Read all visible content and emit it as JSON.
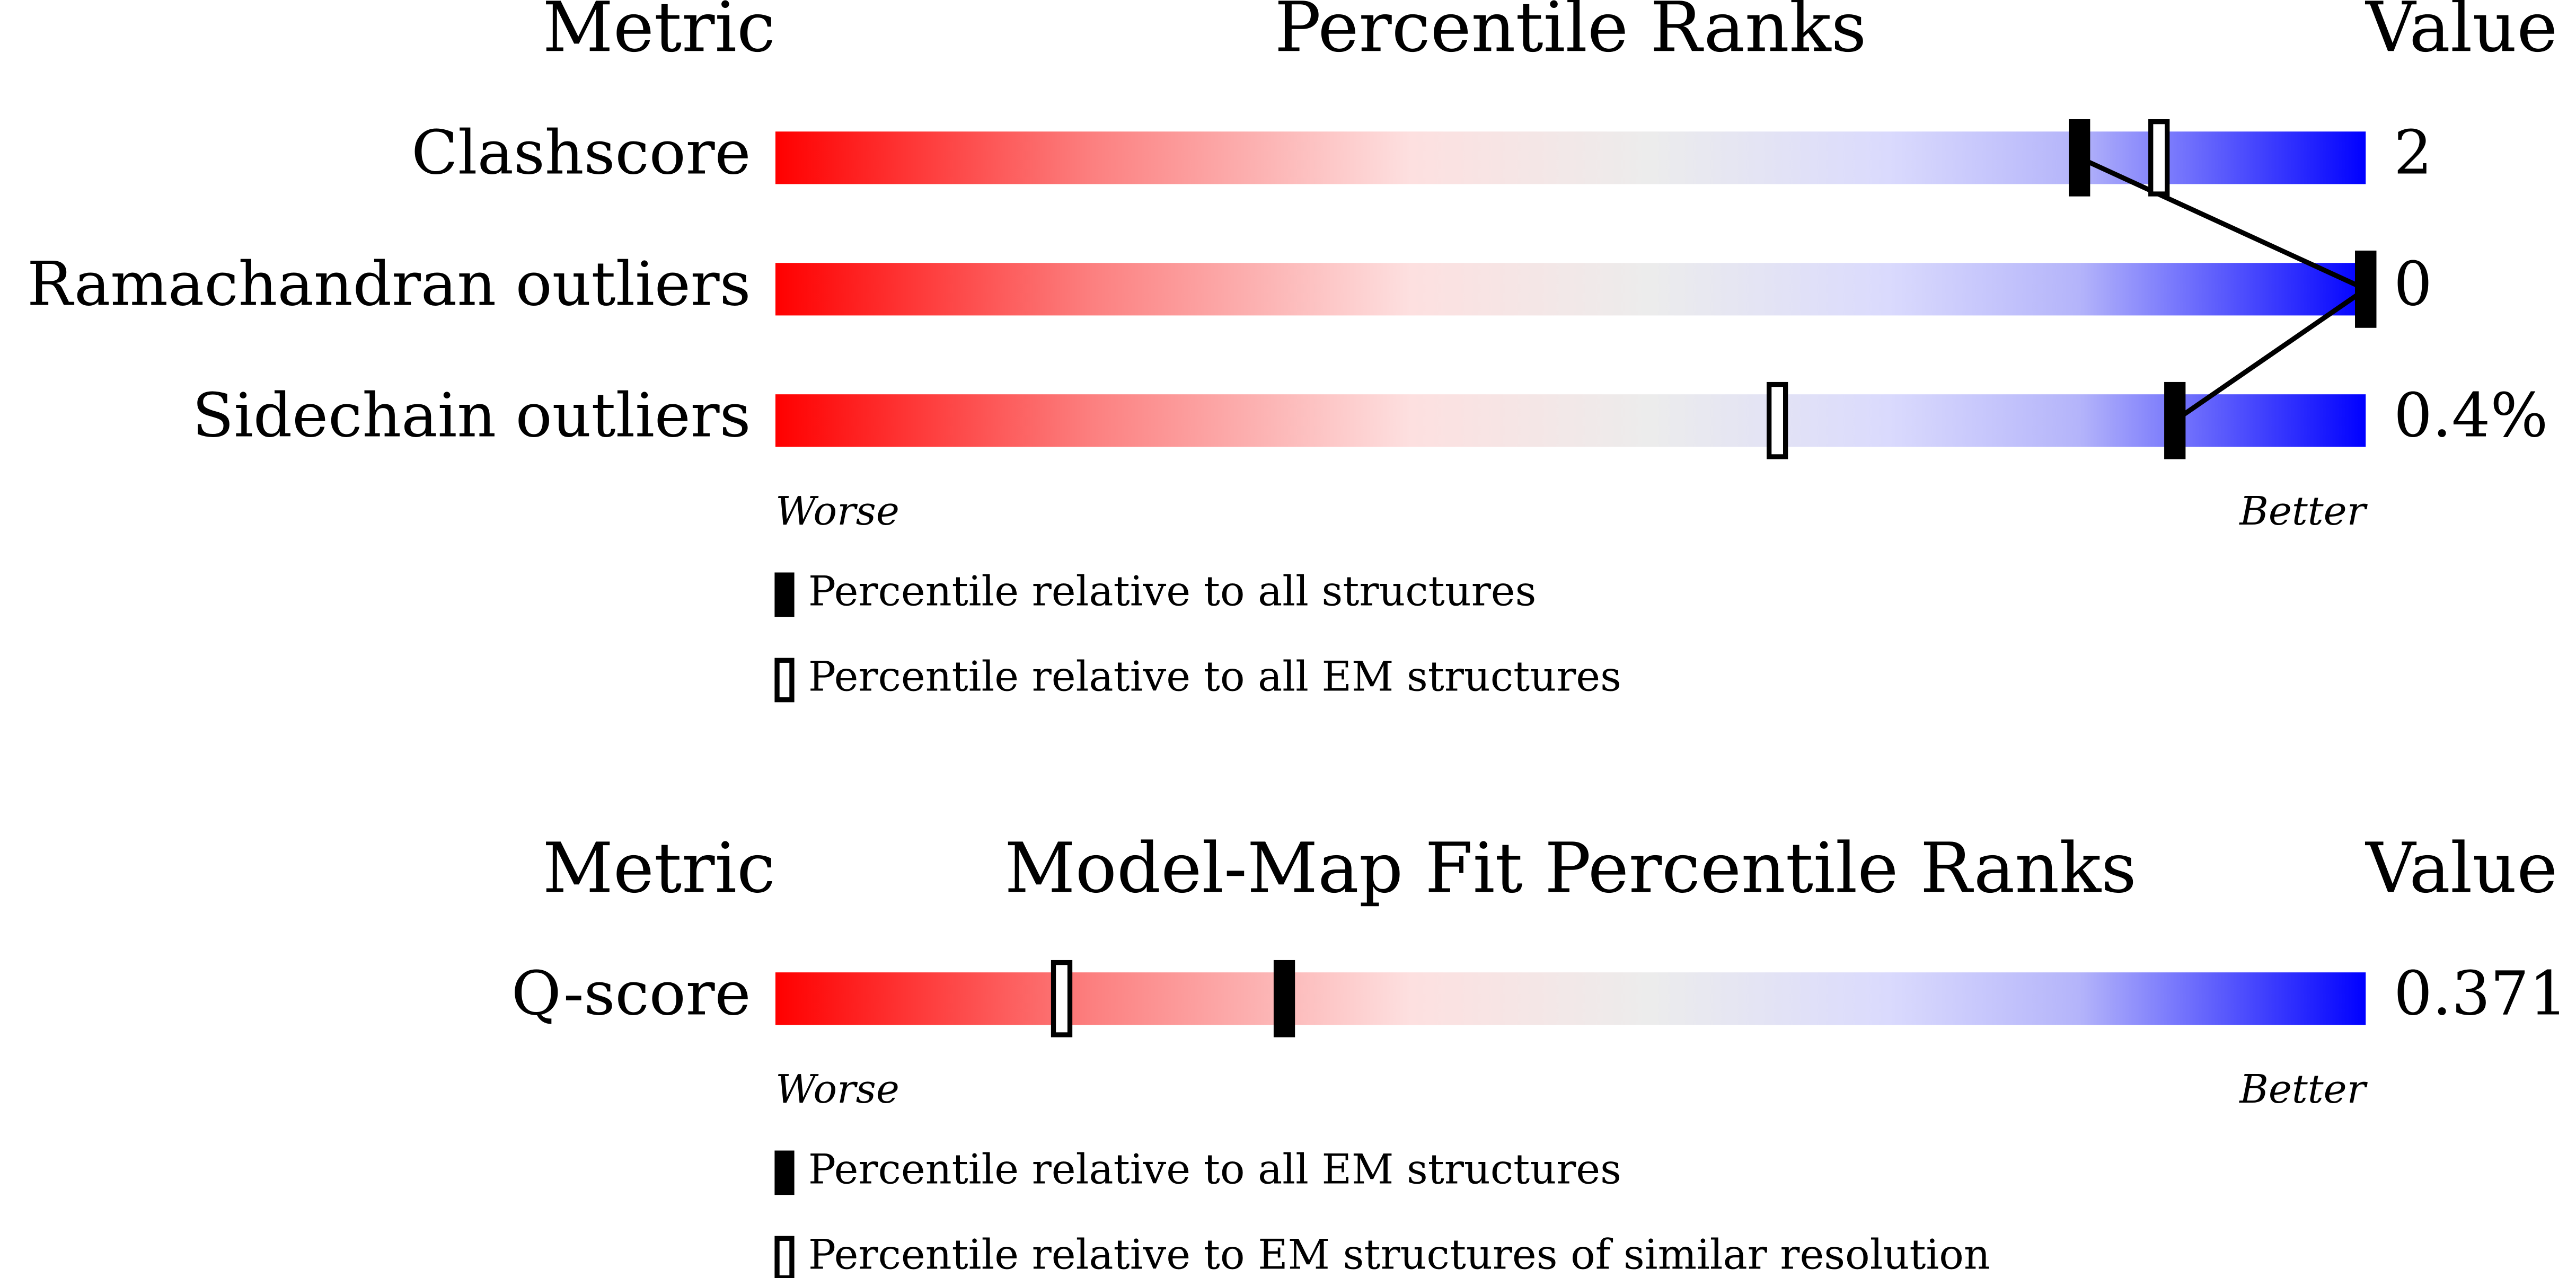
{
  "chart_data": [
    {
      "type": "percentile",
      "metric_header": "Metric",
      "title": "Percentile Ranks",
      "value_header": "Value",
      "categories": [
        "Clashscore",
        "Ramachandran outliers",
        "Sidechain outliers"
      ],
      "value_labels": [
        "2",
        "0",
        "0.4%"
      ],
      "series": [
        {
          "name": "Percentile relative to all structures",
          "color": "#000000",
          "values": [
            82,
            100,
            88
          ]
        },
        {
          "name": "Percentile relative to all EM structures",
          "color": "#ffffff",
          "values": [
            87,
            100,
            63
          ]
        }
      ],
      "xlim": [
        0,
        100
      ],
      "worse_label": "Worse",
      "better_label": "Better"
    },
    {
      "type": "percentile",
      "metric_header": "Metric",
      "title": "Model-Map Fit Percentile Ranks",
      "value_header": "Value",
      "categories": [
        "Q-score"
      ],
      "value_labels": [
        "0.371"
      ],
      "series": [
        {
          "name": "Percentile relative to all EM structures",
          "color": "#000000",
          "values": [
            32
          ]
        },
        {
          "name": "Percentile relative to EM structures of similar resolution",
          "color": "#ffffff",
          "values": [
            18
          ]
        }
      ],
      "xlim": [
        0,
        100
      ],
      "worse_label": "Worse",
      "better_label": "Better"
    }
  ]
}
